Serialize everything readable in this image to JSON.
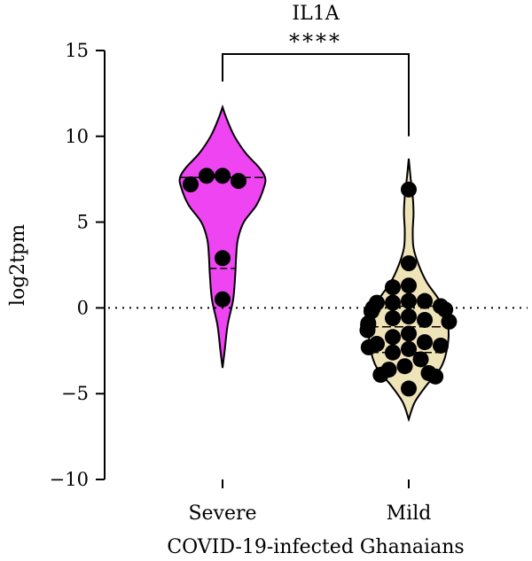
{
  "chart_data": {
    "type": "violin",
    "title": "IL1A",
    "xlabel": "COVID-19-infected Ghanaians",
    "ylabel": "log2tpm",
    "ylim": [
      -10,
      15
    ],
    "yticks": [
      15,
      10,
      5,
      0,
      -5,
      -10
    ],
    "ytick_labels": [
      "15",
      "10",
      "5",
      "0",
      "−5",
      "−10"
    ],
    "categories": [
      "Severe",
      "Mild"
    ],
    "reference_line": 0,
    "significance": {
      "label": "****",
      "between": [
        "Severe",
        "Mild"
      ]
    },
    "colors": {
      "Severe": "#ee44f2",
      "Mild": "#efe3b8"
    },
    "groups": [
      {
        "name": "Severe",
        "points": [
          7.7,
          7.2,
          7.4,
          7.7,
          2.9,
          0.5
        ],
        "median": 7.6,
        "quartiles": [
          2.3,
          7.6
        ],
        "range": [
          -3.5,
          11.7
        ],
        "violin_profile": [
          [
            -3.5,
            0.0
          ],
          [
            -2.5,
            0.05
          ],
          [
            -1.0,
            0.12
          ],
          [
            0.5,
            0.25
          ],
          [
            2.0,
            0.3
          ],
          [
            3.0,
            0.32
          ],
          [
            4.0,
            0.36
          ],
          [
            5.0,
            0.5
          ],
          [
            6.0,
            0.8
          ],
          [
            7.0,
            0.97
          ],
          [
            7.6,
            1.0
          ],
          [
            8.2,
            0.85
          ],
          [
            9.0,
            0.55
          ],
          [
            10.0,
            0.28
          ],
          [
            11.0,
            0.1
          ],
          [
            11.7,
            0.0
          ]
        ]
      },
      {
        "name": "Mild",
        "points": [
          6.9,
          2.6,
          1.3,
          1.2,
          0.4,
          0.4,
          0.3,
          0.3,
          0.1,
          0.0,
          -0.1,
          -0.2,
          -0.5,
          -0.6,
          -0.7,
          -0.8,
          -0.9,
          -1.0,
          -1.3,
          -1.5,
          -1.7,
          -2.0,
          -2.1,
          -2.2,
          -2.3,
          -2.4,
          -2.6,
          -3.0,
          -3.4,
          -3.6,
          -3.8,
          -3.9,
          -4.0,
          -4.7
        ],
        "median": -1.1,
        "quartiles": [
          -2.6,
          0.1
        ],
        "range": [
          -6.5,
          8.7
        ],
        "violin_profile": [
          [
            -6.5,
            0.0
          ],
          [
            -5.5,
            0.15
          ],
          [
            -4.5,
            0.45
          ],
          [
            -3.5,
            0.8
          ],
          [
            -2.5,
            0.95
          ],
          [
            -1.5,
            1.0
          ],
          [
            -0.5,
            0.95
          ],
          [
            0.5,
            0.75
          ],
          [
            1.5,
            0.45
          ],
          [
            2.5,
            0.25
          ],
          [
            3.5,
            0.12
          ],
          [
            4.5,
            0.1
          ],
          [
            5.5,
            0.12
          ],
          [
            6.5,
            0.1
          ],
          [
            7.5,
            0.05
          ],
          [
            8.7,
            0.0
          ]
        ]
      }
    ]
  }
}
